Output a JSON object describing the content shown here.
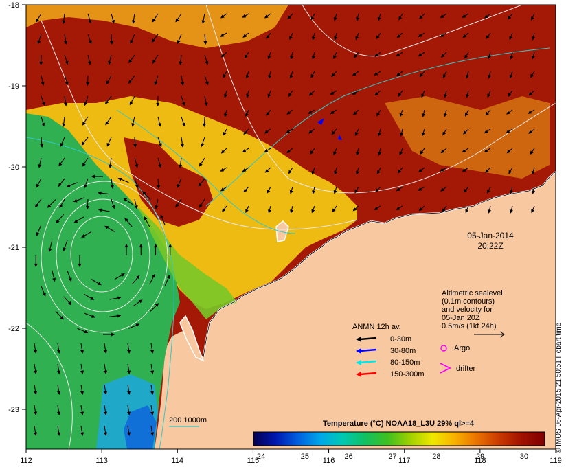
{
  "axes": {
    "x_ticks": [
      "112",
      "113",
      "114",
      "115",
      "116",
      "117",
      "118",
      "119"
    ],
    "y_ticks": [
      "-18",
      "-19",
      "-20",
      "-21",
      "-22",
      "-23"
    ]
  },
  "timestamp": {
    "date": "05-Jan-2014",
    "time": "20:22Z"
  },
  "altimetric_note": {
    "lines": [
      "Altimetric sealevel",
      "(0.1m contours)",
      "and velocity for",
      "05-Jan 20Z",
      "0.5m/s (1kt 24h)"
    ]
  },
  "anmn_legend": {
    "title": "ANMN 12h av.",
    "entries": [
      {
        "label": "0-30m",
        "color": "#000000"
      },
      {
        "label": "30-80m",
        "color": "#0000ff"
      },
      {
        "label": "80-150m",
        "color": "#00e5e5"
      },
      {
        "label": "150-300m",
        "color": "#ff0000"
      }
    ]
  },
  "markers": {
    "argo": {
      "label": "Argo",
      "color": "#ff00ff"
    },
    "drifter": {
      "label": "drifter",
      "color": "#ff00ff"
    }
  },
  "isobath": {
    "label": "200  1000m",
    "color": "#30c8c8"
  },
  "colorbar": {
    "title": "Temperature (°C) NOAA18_L3U 29% ql>=4",
    "ticks": [
      "24",
      "25",
      "26",
      "27",
      "28",
      "29",
      "30"
    ],
    "stops": [
      "#06004f",
      "#0018b0",
      "#0060e0",
      "#00a8e8",
      "#00c8b0",
      "#10c060",
      "#40c020",
      "#a0d000",
      "#f0e800",
      "#f8b000",
      "#e87000",
      "#c83800",
      "#a01000",
      "#800000"
    ]
  },
  "credit": "© IMOS 06-Apr-2015 21:50:51 Hobart time",
  "palette": {
    "land": "#f8c8a0",
    "frame": "#000000"
  }
}
